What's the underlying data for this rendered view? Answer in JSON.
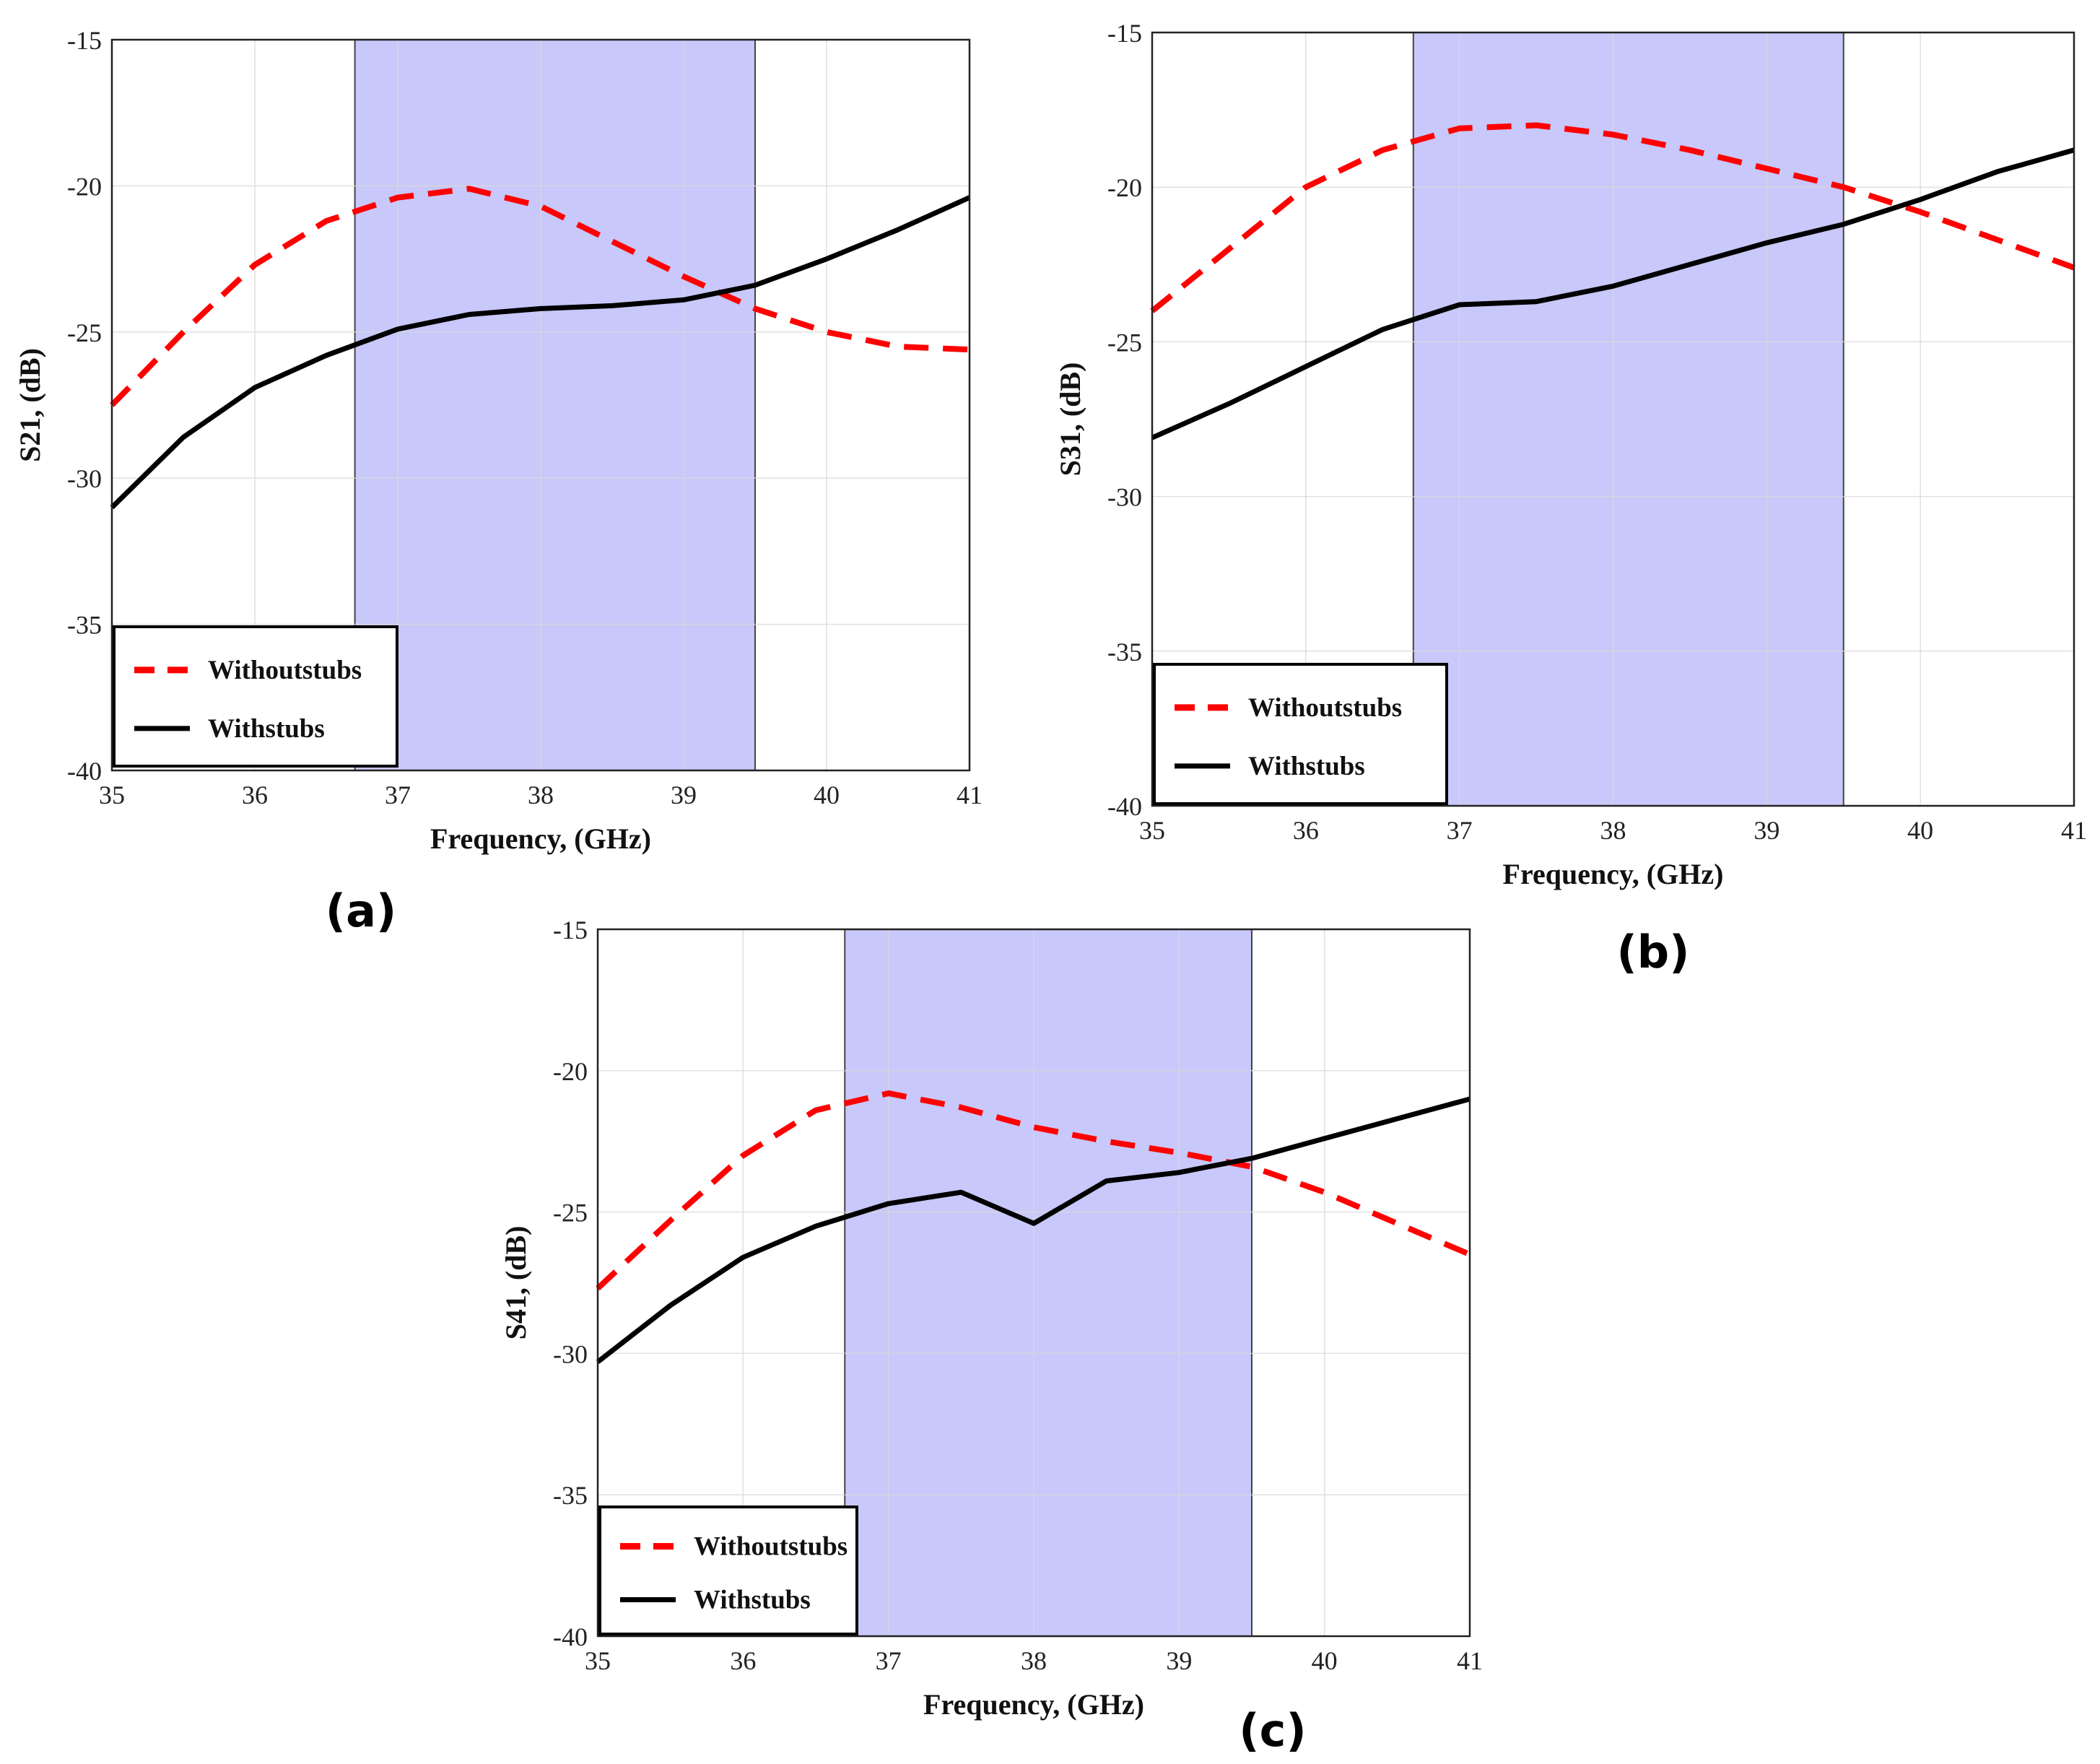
{
  "colors": {
    "band_fill": "#c8c8fa",
    "without_stubs": "#ff0000",
    "with_stubs": "#000000",
    "grid": "#d9d9d9"
  },
  "chart_data": [
    {
      "panel_label": "(a)",
      "type": "line",
      "xlabel": "Frequency, (GHz)",
      "ylabel": "S21, (dB)",
      "xlim": [
        35,
        41
      ],
      "ylim": [
        -40,
        -15
      ],
      "xticks": [
        "35",
        "36",
        "37",
        "38",
        "39",
        "40",
        "41"
      ],
      "yticks": [
        "-15",
        "-20",
        "-25",
        "-30",
        "-35",
        "-40"
      ],
      "grid": true,
      "legend_position": "bottom-left",
      "highlight_band": [
        36.7,
        39.5
      ],
      "series": [
        {
          "name": "Withoutstubs",
          "style": "dashed",
          "x": [
            35,
            35.5,
            36,
            36.5,
            37,
            37.5,
            38,
            38.5,
            39,
            39.5,
            40,
            40.5,
            41
          ],
          "y": [
            -27.5,
            -25,
            -22.7,
            -21.2,
            -20.4,
            -20.1,
            -20.7,
            -21.9,
            -23.1,
            -24.2,
            -25.0,
            -25.5,
            -25.6
          ]
        },
        {
          "name": "Withstubs",
          "style": "solid",
          "x": [
            35,
            35.5,
            36,
            36.5,
            37,
            37.5,
            38,
            38.5,
            39,
            39.5,
            40,
            40.5,
            41
          ],
          "y": [
            -31.0,
            -28.6,
            -26.9,
            -25.8,
            -24.9,
            -24.4,
            -24.2,
            -24.1,
            -23.9,
            -23.4,
            -22.5,
            -21.5,
            -20.4
          ]
        }
      ]
    },
    {
      "panel_label": "(b)",
      "type": "line",
      "xlabel": "Frequency, (GHz)",
      "ylabel": "S31, (dB)",
      "xlim": [
        35,
        41
      ],
      "ylim": [
        -40,
        -15
      ],
      "xticks": [
        "35",
        "36",
        "37",
        "38",
        "39",
        "40",
        "41"
      ],
      "yticks": [
        "-15",
        "-20",
        "-25",
        "-30",
        "-35",
        "-40"
      ],
      "grid": true,
      "legend_position": "bottom-left",
      "highlight_band": [
        36.7,
        39.5
      ],
      "series": [
        {
          "name": "Withoutstubs",
          "style": "dashed",
          "x": [
            35,
            35.5,
            36,
            36.5,
            37,
            37.5,
            38,
            38.5,
            39,
            39.5,
            40,
            40.5,
            41
          ],
          "y": [
            -24.0,
            -22.0,
            -20.0,
            -18.8,
            -18.1,
            -18.0,
            -18.3,
            -18.8,
            -19.4,
            -20.0,
            -20.8,
            -21.7,
            -22.6
          ]
        },
        {
          "name": "Withstubs",
          "style": "solid",
          "x": [
            35,
            35.5,
            36,
            36.5,
            37,
            37.5,
            38,
            38.5,
            39,
            39.5,
            40,
            40.5,
            41
          ],
          "y": [
            -28.1,
            -27.0,
            -25.8,
            -24.6,
            -23.8,
            -23.7,
            -23.2,
            -22.5,
            -21.8,
            -21.2,
            -20.4,
            -19.5,
            -18.8
          ]
        }
      ]
    },
    {
      "panel_label": "(c)",
      "type": "line",
      "xlabel": "Frequency, (GHz)",
      "ylabel": "S41, (dB)",
      "xlim": [
        35,
        41
      ],
      "ylim": [
        -40,
        -15
      ],
      "xticks": [
        "35",
        "36",
        "37",
        "38",
        "39",
        "40",
        "41"
      ],
      "yticks": [
        "-15",
        "-20",
        "-25",
        "-30",
        "-35",
        "-40"
      ],
      "grid": true,
      "legend_position": "bottom-left",
      "highlight_band": [
        36.7,
        39.5
      ],
      "series": [
        {
          "name": "Withoutstubs",
          "style": "dashed",
          "x": [
            35,
            35.5,
            36,
            36.5,
            37,
            37.5,
            38,
            38.5,
            39,
            39.5,
            40,
            40.5,
            41
          ],
          "y": [
            -27.7,
            -25.3,
            -23.0,
            -21.4,
            -20.8,
            -21.3,
            -22.0,
            -22.5,
            -22.9,
            -23.4,
            -24.3,
            -25.4,
            -26.5
          ]
        },
        {
          "name": "Withstubs",
          "style": "solid",
          "x": [
            35,
            35.5,
            36,
            36.5,
            37,
            37.5,
            38,
            38.5,
            39,
            39.5,
            40,
            40.5,
            41
          ],
          "y": [
            -30.3,
            -28.3,
            -26.6,
            -25.5,
            -24.7,
            -24.3,
            -25.4,
            -23.9,
            -23.6,
            -23.1,
            -22.4,
            -21.7,
            -21.0
          ]
        }
      ]
    }
  ]
}
